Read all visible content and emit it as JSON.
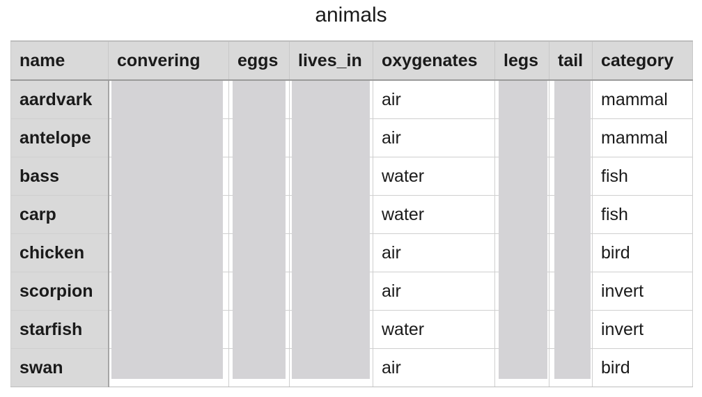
{
  "table": {
    "title": "animals",
    "columns": [
      "name",
      "convering",
      "eggs",
      "lives_in",
      "oxygenates",
      "legs",
      "tail",
      "category"
    ],
    "rows": [
      {
        "name": "aardvark",
        "oxygenates": "air",
        "category": "mammal"
      },
      {
        "name": "antelope",
        "oxygenates": "air",
        "category": "mammal"
      },
      {
        "name": "bass",
        "oxygenates": "water",
        "category": "fish"
      },
      {
        "name": "carp",
        "oxygenates": "water",
        "category": "fish"
      },
      {
        "name": "chicken",
        "oxygenates": "air",
        "category": "bird"
      },
      {
        "name": "scorpion",
        "oxygenates": "air",
        "category": "invert"
      },
      {
        "name": "starfish",
        "oxygenates": "water",
        "category": "invert"
      },
      {
        "name": "swan",
        "oxygenates": "air",
        "category": "bird"
      }
    ],
    "masked_columns": [
      "convering",
      "eggs",
      "lives_in",
      "legs",
      "tail"
    ]
  },
  "colors": {
    "header_bg": "#d9d9d9",
    "name_col_bg": "#d9d9d9",
    "mask": "#d4d3d6",
    "gridline": "#cfcfcf"
  }
}
